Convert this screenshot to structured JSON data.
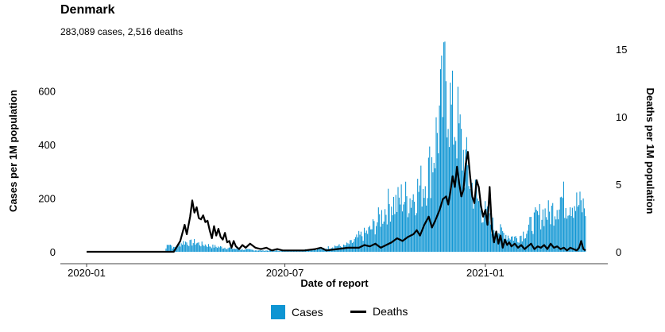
{
  "colors": {
    "cases": "#0e95d3",
    "deaths": "#000000"
  },
  "chart_data": {
    "type": "bar+line",
    "title": "Denmark",
    "subtitle": "283,089 cases, 2,516 deaths",
    "xlabel": "Date of report",
    "ylabel_left": "Cases per 1M population",
    "ylabel_right": "Deaths per 1M population",
    "x_range": [
      "2020-01-01",
      "2021-06-01"
    ],
    "x_ticks": [
      "2020-01",
      "2020-07",
      "2021-01"
    ],
    "x_tick_dates": [
      "2020-01-01",
      "2020-07-01",
      "2021-01-01"
    ],
    "y_left_ticks": [
      0,
      200,
      400,
      600
    ],
    "y_left_range": [
      0,
      740
    ],
    "y_right_ticks": [
      0,
      5,
      10,
      15
    ],
    "y_right_range": [
      0,
      15
    ],
    "legend": "bottom",
    "series": [
      {
        "name": "Cases",
        "kind": "bar",
        "axis": "left",
        "values": [
          [
            0,
            0
          ],
          [
            72,
            0
          ],
          [
            75,
            40
          ],
          [
            80,
            15
          ],
          [
            85,
            30
          ],
          [
            90,
            40
          ],
          [
            95,
            35
          ],
          [
            100,
            38
          ],
          [
            105,
            30
          ],
          [
            110,
            28
          ],
          [
            115,
            22
          ],
          [
            120,
            20
          ],
          [
            130,
            16
          ],
          [
            140,
            10
          ],
          [
            150,
            8
          ],
          [
            160,
            5
          ],
          [
            170,
            5
          ],
          [
            180,
            4
          ],
          [
            190,
            5
          ],
          [
            200,
            8
          ],
          [
            210,
            10
          ],
          [
            220,
            15
          ],
          [
            230,
            25
          ],
          [
            235,
            20
          ],
          [
            240,
            30
          ],
          [
            245,
            40
          ],
          [
            250,
            60
          ],
          [
            255,
            70
          ],
          [
            260,
            85
          ],
          [
            265,
            110
          ],
          [
            270,
            140
          ],
          [
            275,
            175
          ],
          [
            280,
            200
          ],
          [
            285,
            190
          ],
          [
            290,
            220
          ],
          [
            295,
            210
          ],
          [
            300,
            230
          ],
          [
            305,
            250
          ],
          [
            310,
            280
          ],
          [
            315,
            330
          ],
          [
            320,
            430
          ],
          [
            325,
            560
          ],
          [
            328,
            620
          ],
          [
            330,
            740
          ],
          [
            333,
            600
          ],
          [
            336,
            530
          ],
          [
            340,
            520
          ],
          [
            345,
            400
          ],
          [
            350,
            320
          ],
          [
            355,
            250
          ],
          [
            360,
            200
          ],
          [
            365,
            160
          ],
          [
            370,
            120
          ],
          [
            375,
            95
          ],
          [
            380,
            80
          ],
          [
            385,
            70
          ],
          [
            390,
            60
          ],
          [
            395,
            55
          ],
          [
            400,
            70
          ],
          [
            405,
            90
          ],
          [
            410,
            120
          ],
          [
            415,
            140
          ],
          [
            420,
            160
          ],
          [
            425,
            150
          ],
          [
            430,
            180
          ],
          [
            435,
            220
          ],
          [
            440,
            200
          ],
          [
            445,
            210
          ],
          [
            450,
            190
          ],
          [
            455,
            180
          ],
          [
            458,
            180
          ]
        ]
      },
      {
        "name": "Deaths",
        "kind": "line",
        "axis": "right",
        "values": [
          [
            0,
            0
          ],
          [
            80,
            0
          ],
          [
            86,
            0.8
          ],
          [
            90,
            2.0
          ],
          [
            92,
            1.3
          ],
          [
            95,
            2.6
          ],
          [
            97,
            3.8
          ],
          [
            99,
            2.9
          ],
          [
            101,
            3.3
          ],
          [
            103,
            2.5
          ],
          [
            105,
            2.4
          ],
          [
            107,
            2.7
          ],
          [
            109,
            2.2
          ],
          [
            111,
            2.3
          ],
          [
            113,
            1.6
          ],
          [
            115,
            1.0
          ],
          [
            117,
            1.9
          ],
          [
            119,
            1.2
          ],
          [
            121,
            1.7
          ],
          [
            123,
            1.1
          ],
          [
            125,
            0.9
          ],
          [
            127,
            1.4
          ],
          [
            129,
            0.7
          ],
          [
            131,
            0.8
          ],
          [
            133,
            0.3
          ],
          [
            135,
            0.8
          ],
          [
            137,
            0.4
          ],
          [
            140,
            0.2
          ],
          [
            143,
            0.5
          ],
          [
            146,
            0.3
          ],
          [
            150,
            0.6
          ],
          [
            155,
            0.3
          ],
          [
            160,
            0.2
          ],
          [
            165,
            0.3
          ],
          [
            170,
            0.1
          ],
          [
            175,
            0.2
          ],
          [
            180,
            0.1
          ],
          [
            190,
            0.1
          ],
          [
            200,
            0.1
          ],
          [
            210,
            0.2
          ],
          [
            215,
            0.3
          ],
          [
            220,
            0.1
          ],
          [
            230,
            0.2
          ],
          [
            240,
            0.3
          ],
          [
            250,
            0.3
          ],
          [
            255,
            0.5
          ],
          [
            260,
            0.4
          ],
          [
            265,
            0.6
          ],
          [
            270,
            0.3
          ],
          [
            275,
            0.5
          ],
          [
            280,
            0.7
          ],
          [
            285,
            1.0
          ],
          [
            290,
            0.8
          ],
          [
            295,
            1.1
          ],
          [
            300,
            1.3
          ],
          [
            303,
            1.6
          ],
          [
            306,
            1.2
          ],
          [
            310,
            2.0
          ],
          [
            314,
            2.6
          ],
          [
            317,
            1.8
          ],
          [
            320,
            2.3
          ],
          [
            324,
            3.1
          ],
          [
            327,
            3.9
          ],
          [
            330,
            4.1
          ],
          [
            332,
            3.5
          ],
          [
            334,
            4.5
          ],
          [
            336,
            5.6
          ],
          [
            338,
            4.8
          ],
          [
            340,
            6.3
          ],
          [
            342,
            5.1
          ],
          [
            344,
            4.1
          ],
          [
            346,
            4.6
          ],
          [
            348,
            6.5
          ],
          [
            350,
            7.4
          ],
          [
            352,
            5.6
          ],
          [
            354,
            4.1
          ],
          [
            356,
            3.6
          ],
          [
            358,
            5.3
          ],
          [
            360,
            4.8
          ],
          [
            362,
            3.4
          ],
          [
            364,
            2.6
          ],
          [
            366,
            3.1
          ],
          [
            368,
            2.0
          ],
          [
            370,
            4.8
          ],
          [
            372,
            1.7
          ],
          [
            374,
            0.7
          ],
          [
            376,
            1.5
          ],
          [
            378,
            0.6
          ],
          [
            380,
            1.2
          ],
          [
            382,
            0.3
          ],
          [
            384,
            0.9
          ],
          [
            386,
            0.5
          ],
          [
            388,
            0.7
          ],
          [
            390,
            0.4
          ],
          [
            393,
            0.6
          ],
          [
            396,
            0.3
          ],
          [
            399,
            0.5
          ],
          [
            402,
            0.2
          ],
          [
            405,
            0.4
          ],
          [
            408,
            0.6
          ],
          [
            411,
            0.2
          ],
          [
            414,
            0.4
          ],
          [
            417,
            0.3
          ],
          [
            420,
            0.5
          ],
          [
            423,
            0.2
          ],
          [
            426,
            0.6
          ],
          [
            429,
            0.3
          ],
          [
            432,
            0.4
          ],
          [
            435,
            0.2
          ],
          [
            438,
            0.3
          ],
          [
            441,
            0.1
          ],
          [
            444,
            0.3
          ],
          [
            447,
            0.2
          ],
          [
            450,
            0.1
          ],
          [
            452,
            0.3
          ],
          [
            454,
            0.8
          ],
          [
            456,
            0.2
          ],
          [
            458,
            0.1
          ]
        ]
      }
    ]
  },
  "legend": {
    "cases_label": "Cases",
    "deaths_label": "Deaths"
  }
}
